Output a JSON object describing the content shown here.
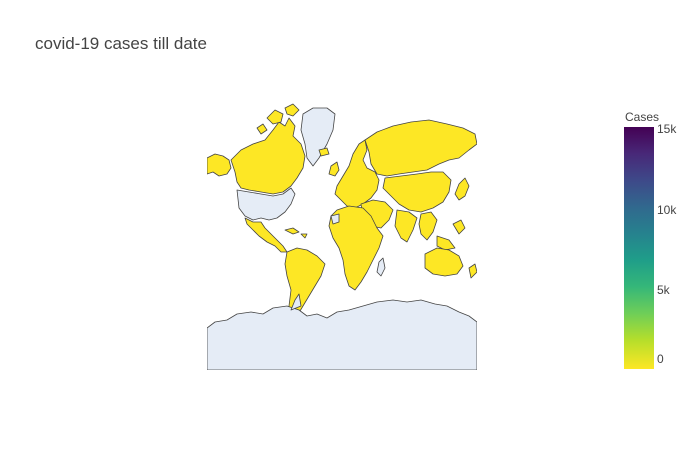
{
  "title": "covid-19 cases till date",
  "legend": {
    "title": "Cases",
    "ticks": [
      {
        "label": "15k",
        "value": 15000
      },
      {
        "label": "10k",
        "value": 10000
      },
      {
        "label": "5k",
        "value": 5000
      },
      {
        "label": "0",
        "value": 0
      }
    ],
    "range": [
      0,
      15000
    ],
    "colorscale": "viridis"
  },
  "colors": {
    "reported_country": "#fde725",
    "no_data_land": "#e5ecf6",
    "border": "#444444",
    "title_text": "#444444"
  },
  "map": {
    "projection": "mercator",
    "countries_with_data_color": "yellow",
    "unreported_regions": [
      "Greenland",
      "Antarctica",
      "Western Sahara"
    ]
  }
}
